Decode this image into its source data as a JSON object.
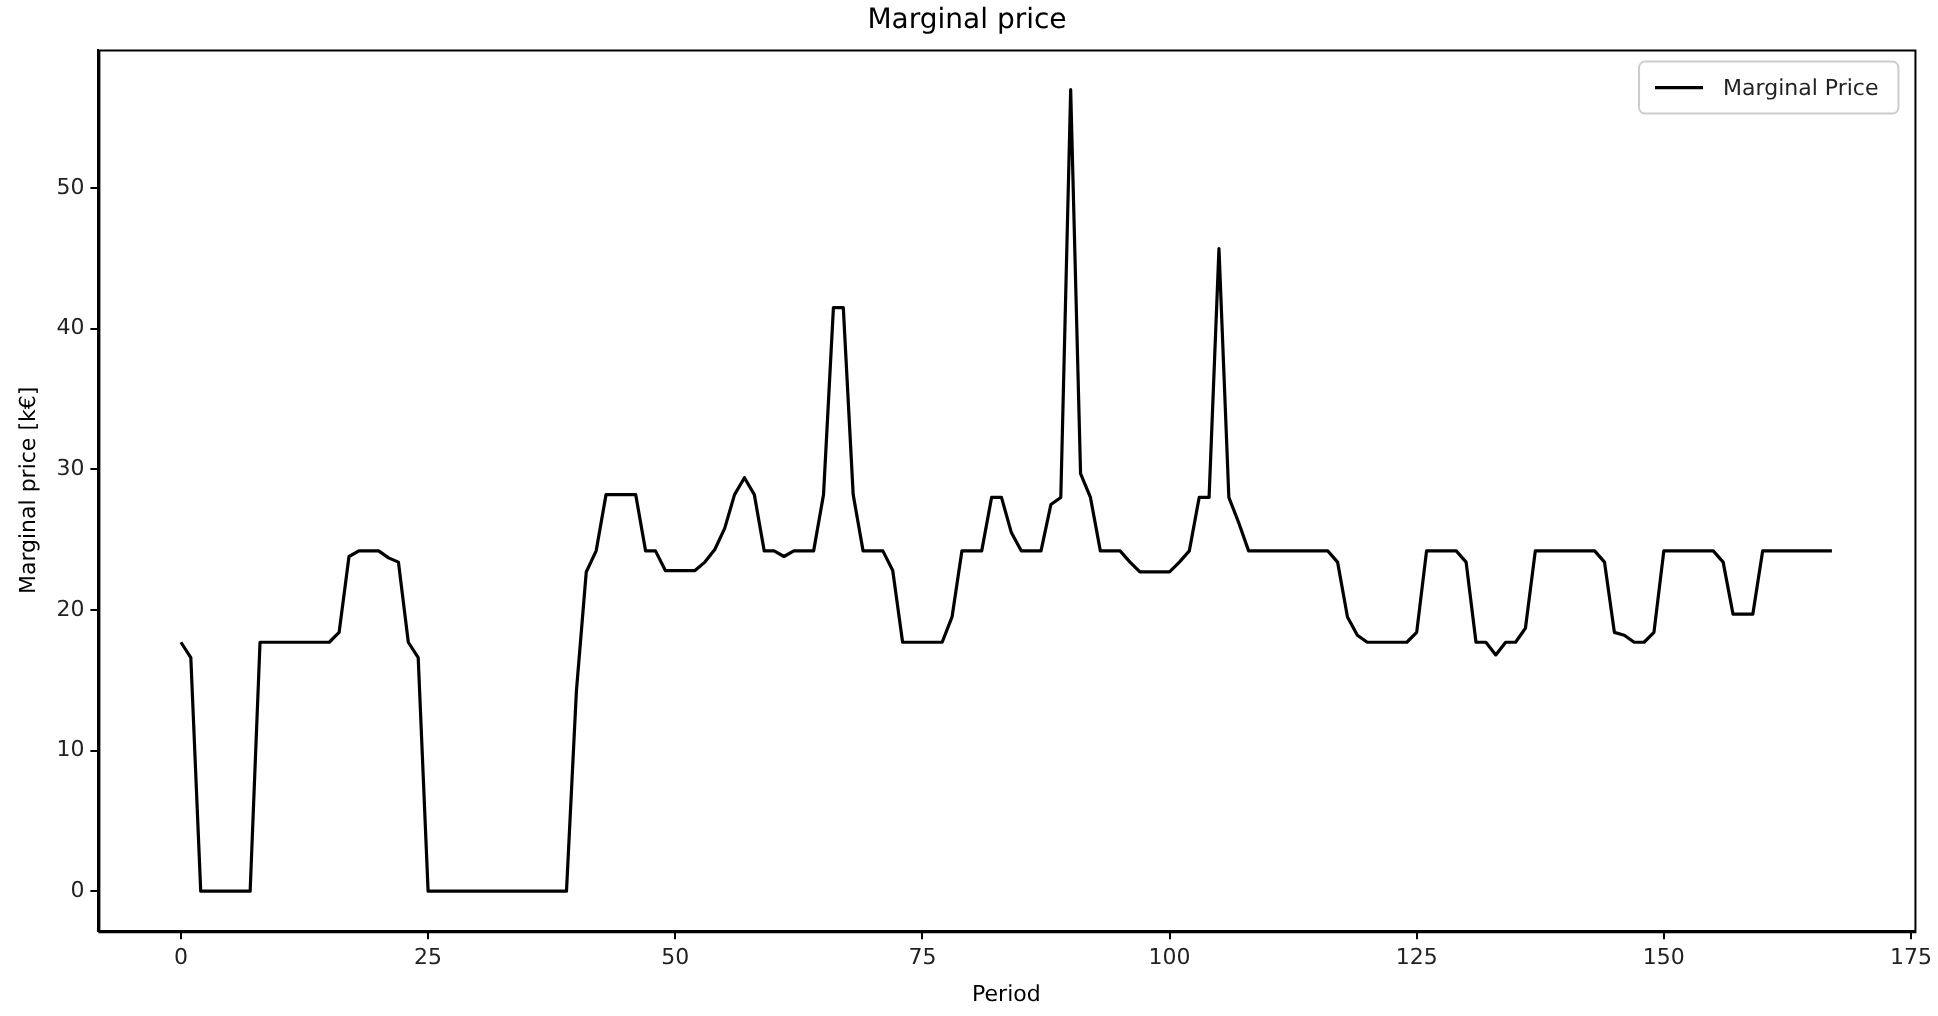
{
  "chart_data": {
    "type": "line",
    "title": "Marginal price",
    "xlabel": "Period",
    "ylabel": "Marginal price [k€]",
    "x": [
      0,
      1,
      2,
      3,
      4,
      5,
      6,
      7,
      8,
      9,
      10,
      11,
      12,
      13,
      14,
      15,
      16,
      17,
      18,
      19,
      20,
      21,
      22,
      23,
      24,
      25,
      26,
      27,
      28,
      29,
      30,
      31,
      32,
      33,
      34,
      35,
      36,
      37,
      38,
      39,
      40,
      41,
      42,
      43,
      44,
      45,
      46,
      47,
      48,
      49,
      50,
      51,
      52,
      53,
      54,
      55,
      56,
      57,
      58,
      59,
      60,
      61,
      62,
      63,
      64,
      65,
      66,
      67,
      68,
      69,
      70,
      71,
      72,
      73,
      74,
      75,
      76,
      77,
      78,
      79,
      80,
      81,
      82,
      83,
      84,
      85,
      86,
      87,
      88,
      89,
      90,
      91,
      92,
      93,
      94,
      95,
      96,
      97,
      98,
      99,
      100,
      101,
      102,
      103,
      104,
      105,
      106,
      107,
      108,
      109,
      110,
      111,
      112,
      113,
      114,
      115,
      116,
      117,
      118,
      119,
      120,
      121,
      122,
      123,
      124,
      125,
      126,
      127,
      128,
      129,
      130,
      131,
      132,
      133,
      134,
      135,
      136,
      137,
      138,
      139,
      140,
      141,
      142,
      143,
      144,
      145,
      146,
      147,
      148,
      149,
      150,
      151,
      152,
      153,
      154,
      155,
      156,
      157,
      158,
      159,
      160,
      161,
      162,
      163,
      164,
      165,
      166,
      167
    ],
    "series": [
      {
        "name": "Marginal Price",
        "color": "#000000",
        "values": [
          17.7,
          16.6,
          0,
          0,
          0,
          0,
          0,
          0,
          17.7,
          17.7,
          17.7,
          17.7,
          17.7,
          17.7,
          17.7,
          17.7,
          18.4,
          23.8,
          24.2,
          24.2,
          24.2,
          23.7,
          23.4,
          17.7,
          16.6,
          0,
          0,
          0,
          0,
          0,
          0,
          0,
          0,
          0,
          0,
          0,
          0,
          0,
          0,
          0,
          14.2,
          22.7,
          24.2,
          28.2,
          28.2,
          28.2,
          28.2,
          24.2,
          24.2,
          22.8,
          22.8,
          22.8,
          22.8,
          23.4,
          24.3,
          25.8,
          28.2,
          29.4,
          28.2,
          24.2,
          24.2,
          23.8,
          24.2,
          24.2,
          24.2,
          28.2,
          41.5,
          41.5,
          28.2,
          24.2,
          24.2,
          24.2,
          22.8,
          17.7,
          17.7,
          17.7,
          17.7,
          17.7,
          19.5,
          24.2,
          24.2,
          24.2,
          28,
          28,
          25.5,
          24.2,
          24.2,
          24.2,
          27.5,
          28,
          57,
          29.7,
          28,
          24.2,
          24.2,
          24.2,
          23.4,
          22.7,
          22.7,
          22.7,
          22.7,
          23.4,
          24.2,
          28,
          28,
          45.7,
          28,
          26.2,
          24.2,
          24.2,
          24.2,
          24.2,
          24.2,
          24.2,
          24.2,
          24.2,
          24.2,
          23.4,
          19.5,
          18.2,
          17.7,
          17.7,
          17.7,
          17.7,
          17.7,
          18.4,
          24.2,
          24.2,
          24.2,
          24.2,
          23.4,
          17.7,
          17.7,
          16.8,
          17.7,
          17.7,
          18.7,
          24.2,
          24.2,
          24.2,
          24.2,
          24.2,
          24.2,
          24.2,
          23.4,
          18.4,
          18.2,
          17.7,
          17.7,
          18.4,
          24.2,
          24.2,
          24.2,
          24.2,
          24.2,
          24.2,
          23.4,
          19.7,
          19.7,
          19.7,
          24.2,
          24.2,
          24.2,
          24.2,
          24.2,
          24.2,
          24.2,
          24.2
        ]
      }
    ],
    "xlim": [
      -8.35,
      175.35
    ],
    "ylim": [
      -2.85,
      59.85
    ],
    "xticks": [
      0,
      25,
      50,
      75,
      100,
      125,
      150,
      175
    ],
    "yticks": [
      0,
      10,
      20,
      30,
      40,
      50
    ],
    "legend": "top right",
    "marker": "none",
    "line_style": "solid"
  }
}
